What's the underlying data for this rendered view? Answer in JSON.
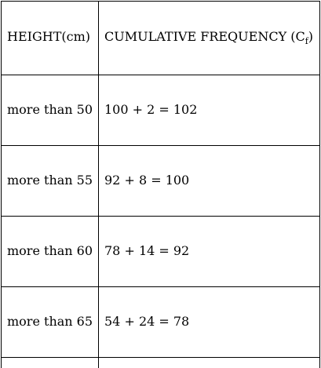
{
  "table": {
    "header": {
      "height": "HEIGHT(cm)",
      "cumulative_prefix": "CUMULATIVE FREQUENCY (C",
      "cumulative_subscript": "f",
      "cumulative_suffix": ")"
    },
    "rows": [
      {
        "height": "more than 50",
        "cumulative": "100 + 2 = 102"
      },
      {
        "height": "more than 55",
        "cumulative": "92 + 8 = 100"
      },
      {
        "height": "more than 60",
        "cumulative": "78 + 14 = 92"
      },
      {
        "height": "more than 65",
        "cumulative": "54 + 24 = 78"
      }
    ]
  }
}
